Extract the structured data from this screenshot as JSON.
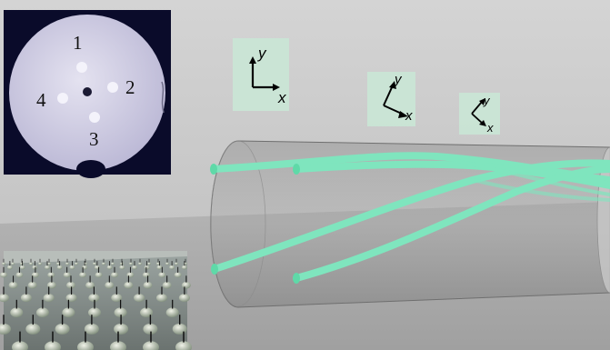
{
  "core_labels": [
    "1",
    "2",
    "3",
    "4"
  ],
  "frames": [
    {
      "y_label": "y",
      "x_label": "x",
      "rotation_deg": 0
    },
    {
      "y_label": "y",
      "x_label": "x",
      "rotation_deg": 30
    },
    {
      "y_label": "y",
      "x_label": "x",
      "rotation_deg": 45
    }
  ],
  "colors": {
    "fiber_core": "#7fe5be",
    "frame_panel": "#c9e7d6",
    "cross_section_bg": "#d8d6e8",
    "background": "#bdbdbd"
  }
}
